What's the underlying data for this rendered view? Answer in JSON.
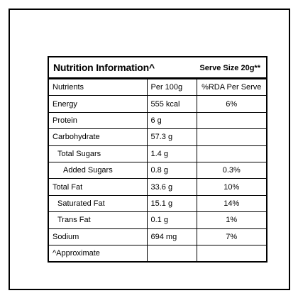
{
  "label": {
    "title": "Nutrition Information^",
    "serve_size": "Serve Size 20g**",
    "columns": [
      "Nutrients",
      "Per 100g",
      "%RDA Per Serve"
    ],
    "rows": [
      {
        "nutrient": "Energy",
        "per100g": "555 kcal",
        "rda": "6%"
      },
      {
        "nutrient": "Protein",
        "per100g": "6 g",
        "rda": ""
      },
      {
        "nutrient": "Carbohydrate",
        "per100g": "57.3 g",
        "rda": ""
      },
      {
        "nutrient": "Total Sugars",
        "per100g": "1.4 g",
        "rda": ""
      },
      {
        "nutrient": "Added Sugars",
        "per100g": "0.8 g",
        "rda": "0.3%"
      },
      {
        "nutrient": "Total Fat",
        "per100g": "33.6 g",
        "rda": "10%"
      },
      {
        "nutrient": "Saturated Fat",
        "per100g": "15.1 g",
        "rda": "14%"
      },
      {
        "nutrient": "Trans Fat",
        "per100g": "0.1 g",
        "rda": "1%"
      },
      {
        "nutrient": "Sodium",
        "per100g": "694 mg",
        "rda": "7%"
      }
    ],
    "footnote": "^Approximate"
  }
}
